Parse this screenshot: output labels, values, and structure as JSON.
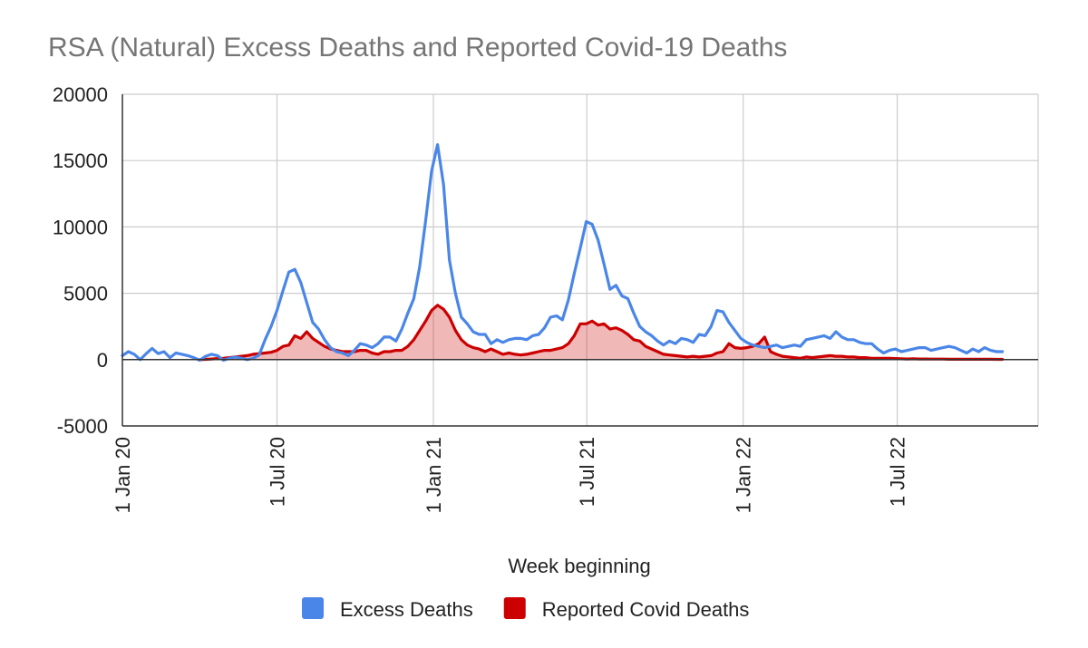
{
  "chart_data": {
    "type": "line",
    "title": "RSA (Natural) Excess Deaths and Reported Covid-19 Deaths",
    "xlabel": "Week beginning",
    "ylabel": "",
    "ylim": [
      -5000,
      20000
    ],
    "yticks": [
      -5000,
      0,
      5000,
      10000,
      15000,
      20000
    ],
    "x_unit": "weeks since 1 Jan 20",
    "xlim": [
      0,
      154
    ],
    "xticks": [
      {
        "label": "1 Jan 20",
        "week": 0
      },
      {
        "label": "1 Jul 20",
        "week": 26
      },
      {
        "label": "1 Jan 21",
        "week": 52.3
      },
      {
        "label": "1 Jul 21",
        "week": 78.1
      },
      {
        "label": "1 Jan 22",
        "week": 104.4
      },
      {
        "label": "1 Jul 22",
        "week": 130.3
      }
    ],
    "grid": true,
    "legend_position": "bottom",
    "series": [
      {
        "name": "Excess Deaths",
        "color": "#4a86e8",
        "filled": false,
        "points": [
          [
            0,
            300
          ],
          [
            1,
            600
          ],
          [
            2,
            400
          ],
          [
            3,
            0
          ],
          [
            4,
            450
          ],
          [
            5,
            850
          ],
          [
            6,
            450
          ],
          [
            7,
            600
          ],
          [
            8,
            150
          ],
          [
            9,
            500
          ],
          [
            10,
            400
          ],
          [
            11,
            300
          ],
          [
            12,
            150
          ],
          [
            13,
            -50
          ],
          [
            14,
            250
          ],
          [
            15,
            400
          ],
          [
            16,
            300
          ],
          [
            17,
            -50
          ],
          [
            18,
            100
          ],
          [
            19,
            200
          ],
          [
            20,
            100
          ],
          [
            21,
            0
          ],
          [
            22,
            100
          ],
          [
            23,
            350
          ],
          [
            24,
            1500
          ],
          [
            25,
            2500
          ],
          [
            26,
            3700
          ],
          [
            27,
            5200
          ],
          [
            28,
            6600
          ],
          [
            29,
            6800
          ],
          [
            30,
            5800
          ],
          [
            31,
            4300
          ],
          [
            32,
            2800
          ],
          [
            33,
            2300
          ],
          [
            34,
            1500
          ],
          [
            35,
            900
          ],
          [
            36,
            600
          ],
          [
            37,
            500
          ],
          [
            38,
            300
          ],
          [
            39,
            700
          ],
          [
            40,
            1200
          ],
          [
            41,
            1100
          ],
          [
            42,
            900
          ],
          [
            43,
            1200
          ],
          [
            44,
            1700
          ],
          [
            45,
            1700
          ],
          [
            46,
            1400
          ],
          [
            47,
            2300
          ],
          [
            48,
            3500
          ],
          [
            49,
            4600
          ],
          [
            50,
            7000
          ],
          [
            51,
            10500
          ],
          [
            52,
            14200
          ],
          [
            53,
            16200
          ],
          [
            54,
            13200
          ],
          [
            55,
            7500
          ],
          [
            56,
            5000
          ],
          [
            57,
            3200
          ],
          [
            58,
            2700
          ],
          [
            59,
            2100
          ],
          [
            60,
            1900
          ],
          [
            61,
            1900
          ],
          [
            62,
            1200
          ],
          [
            63,
            1500
          ],
          [
            64,
            1300
          ],
          [
            65,
            1500
          ],
          [
            66,
            1600
          ],
          [
            67,
            1600
          ],
          [
            68,
            1500
          ],
          [
            69,
            1800
          ],
          [
            70,
            1900
          ],
          [
            71,
            2400
          ],
          [
            72,
            3200
          ],
          [
            73,
            3300
          ],
          [
            74,
            3000
          ],
          [
            75,
            4500
          ],
          [
            76,
            6500
          ],
          [
            77,
            8400
          ],
          [
            78,
            10400
          ],
          [
            79,
            10200
          ],
          [
            80,
            9000
          ],
          [
            81,
            7200
          ],
          [
            82,
            5300
          ],
          [
            83,
            5600
          ],
          [
            84,
            4800
          ],
          [
            85,
            4600
          ],
          [
            86,
            3500
          ],
          [
            87,
            2500
          ],
          [
            88,
            2100
          ],
          [
            89,
            1800
          ],
          [
            90,
            1400
          ],
          [
            91,
            1100
          ],
          [
            92,
            1400
          ],
          [
            93,
            1200
          ],
          [
            94,
            1600
          ],
          [
            95,
            1500
          ],
          [
            96,
            1300
          ],
          [
            97,
            1900
          ],
          [
            98,
            1800
          ],
          [
            99,
            2500
          ],
          [
            100,
            3700
          ],
          [
            101,
            3600
          ],
          [
            102,
            2800
          ],
          [
            103,
            2200
          ],
          [
            104,
            1600
          ],
          [
            105,
            1300
          ],
          [
            106,
            1100
          ],
          [
            107,
            1000
          ],
          [
            108,
            900
          ],
          [
            109,
            1000
          ],
          [
            110,
            1100
          ],
          [
            111,
            900
          ],
          [
            112,
            1000
          ],
          [
            113,
            1100
          ],
          [
            114,
            1000
          ],
          [
            115,
            1500
          ],
          [
            116,
            1600
          ],
          [
            117,
            1700
          ],
          [
            118,
            1800
          ],
          [
            119,
            1600
          ],
          [
            120,
            2100
          ],
          [
            121,
            1700
          ],
          [
            122,
            1500
          ],
          [
            123,
            1500
          ],
          [
            124,
            1300
          ],
          [
            125,
            1200
          ],
          [
            126,
            1200
          ],
          [
            127,
            800
          ],
          [
            128,
            500
          ],
          [
            129,
            700
          ],
          [
            130,
            800
          ],
          [
            131,
            600
          ],
          [
            132,
            700
          ],
          [
            133,
            800
          ],
          [
            134,
            900
          ],
          [
            135,
            900
          ],
          [
            136,
            700
          ],
          [
            137,
            800
          ],
          [
            138,
            900
          ],
          [
            139,
            1000
          ],
          [
            140,
            900
          ],
          [
            141,
            700
          ],
          [
            142,
            500
          ],
          [
            143,
            800
          ],
          [
            144,
            600
          ],
          [
            145,
            900
          ],
          [
            146,
            700
          ],
          [
            147,
            600
          ],
          [
            148,
            600
          ]
        ]
      },
      {
        "name": "Reported Covid Deaths",
        "color": "#cc0000",
        "filled": true,
        "points": [
          [
            13,
            0
          ],
          [
            14,
            20
          ],
          [
            15,
            50
          ],
          [
            16,
            80
          ],
          [
            17,
            100
          ],
          [
            18,
            150
          ],
          [
            19,
            200
          ],
          [
            20,
            250
          ],
          [
            21,
            300
          ],
          [
            22,
            400
          ],
          [
            23,
            450
          ],
          [
            24,
            500
          ],
          [
            25,
            550
          ],
          [
            26,
            700
          ],
          [
            27,
            1000
          ],
          [
            28,
            1100
          ],
          [
            29,
            1800
          ],
          [
            30,
            1600
          ],
          [
            31,
            2100
          ],
          [
            32,
            1600
          ],
          [
            33,
            1300
          ],
          [
            34,
            1000
          ],
          [
            35,
            800
          ],
          [
            36,
            700
          ],
          [
            37,
            600
          ],
          [
            38,
            600
          ],
          [
            39,
            600
          ],
          [
            40,
            700
          ],
          [
            41,
            700
          ],
          [
            42,
            500
          ],
          [
            43,
            400
          ],
          [
            44,
            600
          ],
          [
            45,
            600
          ],
          [
            46,
            700
          ],
          [
            47,
            700
          ],
          [
            48,
            1000
          ],
          [
            49,
            1500
          ],
          [
            50,
            2200
          ],
          [
            51,
            2900
          ],
          [
            52,
            3700
          ],
          [
            53,
            4100
          ],
          [
            54,
            3800
          ],
          [
            55,
            3200
          ],
          [
            56,
            2200
          ],
          [
            57,
            1500
          ],
          [
            58,
            1100
          ],
          [
            59,
            900
          ],
          [
            60,
            800
          ],
          [
            61,
            600
          ],
          [
            62,
            800
          ],
          [
            63,
            600
          ],
          [
            64,
            400
          ],
          [
            65,
            500
          ],
          [
            66,
            400
          ],
          [
            67,
            350
          ],
          [
            68,
            400
          ],
          [
            69,
            500
          ],
          [
            70,
            600
          ],
          [
            71,
            700
          ],
          [
            72,
            700
          ],
          [
            73,
            800
          ],
          [
            74,
            900
          ],
          [
            75,
            1200
          ],
          [
            76,
            1800
          ],
          [
            77,
            2700
          ],
          [
            78,
            2700
          ],
          [
            79,
            2900
          ],
          [
            80,
            2600
          ],
          [
            81,
            2700
          ],
          [
            82,
            2300
          ],
          [
            83,
            2400
          ],
          [
            84,
            2200
          ],
          [
            85,
            1900
          ],
          [
            86,
            1500
          ],
          [
            87,
            1400
          ],
          [
            88,
            1000
          ],
          [
            89,
            800
          ],
          [
            90,
            600
          ],
          [
            91,
            400
          ],
          [
            92,
            350
          ],
          [
            93,
            300
          ],
          [
            94,
            250
          ],
          [
            95,
            200
          ],
          [
            96,
            250
          ],
          [
            97,
            200
          ],
          [
            98,
            250
          ],
          [
            99,
            300
          ],
          [
            100,
            500
          ],
          [
            101,
            600
          ],
          [
            102,
            1200
          ],
          [
            103,
            900
          ],
          [
            104,
            850
          ],
          [
            105,
            900
          ],
          [
            106,
            1000
          ],
          [
            107,
            1200
          ],
          [
            108,
            1700
          ],
          [
            109,
            600
          ],
          [
            110,
            400
          ],
          [
            111,
            250
          ],
          [
            112,
            200
          ],
          [
            113,
            150
          ],
          [
            114,
            100
          ],
          [
            115,
            200
          ],
          [
            116,
            150
          ],
          [
            117,
            200
          ],
          [
            118,
            250
          ],
          [
            119,
            300
          ],
          [
            120,
            250
          ],
          [
            121,
            250
          ],
          [
            122,
            200
          ],
          [
            123,
            200
          ],
          [
            124,
            150
          ],
          [
            125,
            150
          ],
          [
            126,
            100
          ],
          [
            127,
            100
          ],
          [
            128,
            100
          ],
          [
            129,
            100
          ],
          [
            130,
            80
          ],
          [
            131,
            60
          ],
          [
            132,
            50
          ],
          [
            133,
            60
          ],
          [
            134,
            50
          ],
          [
            135,
            50
          ],
          [
            136,
            40
          ],
          [
            137,
            40
          ],
          [
            138,
            40
          ],
          [
            139,
            30
          ],
          [
            140,
            30
          ],
          [
            141,
            30
          ],
          [
            142,
            30
          ],
          [
            143,
            30
          ],
          [
            144,
            30
          ],
          [
            145,
            30
          ],
          [
            146,
            30
          ],
          [
            147,
            20
          ],
          [
            148,
            20
          ]
        ]
      }
    ]
  }
}
